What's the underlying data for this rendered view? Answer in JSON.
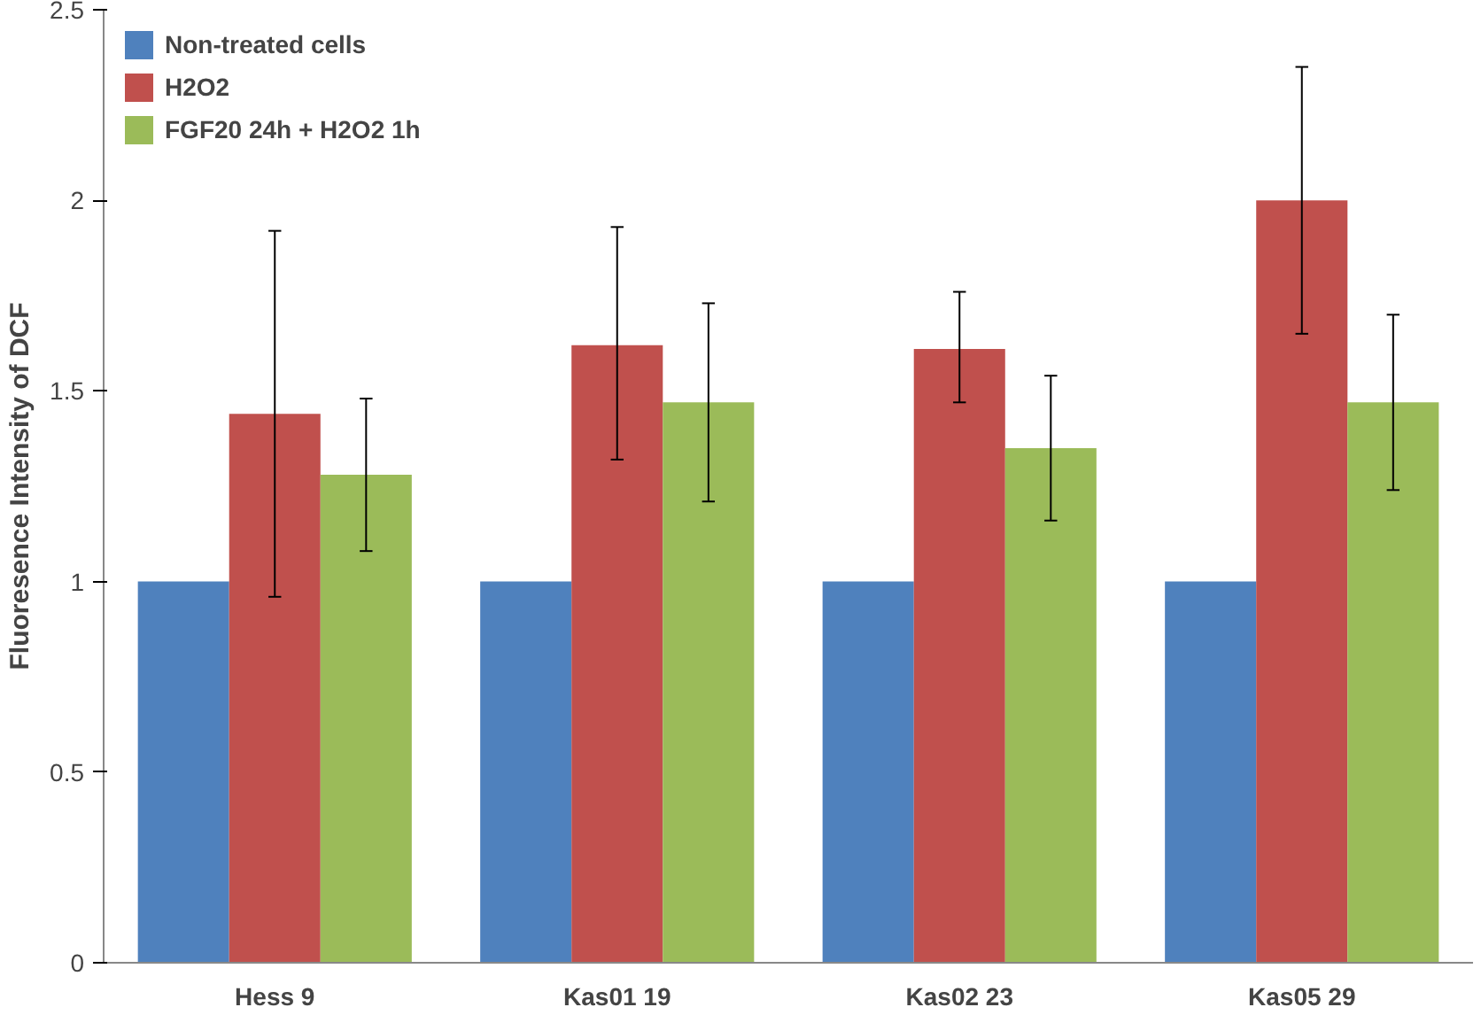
{
  "chart_data": {
    "type": "bar",
    "ylabel": "Fluoresence Intensity of DCF",
    "categories": [
      "Hess 9",
      "Kas01 19",
      "Kas02 23",
      "Kas05 29"
    ],
    "series": [
      {
        "name": "Non-treated cells",
        "color": "#4f81bd",
        "values": [
          1,
          1,
          1,
          1
        ]
      },
      {
        "name": "H2O2",
        "color": "#c0504d",
        "values": [
          1.44,
          1.62,
          1.61,
          2.0
        ],
        "errors": [
          [
            0.96,
            1.92
          ],
          [
            1.32,
            1.93
          ],
          [
            1.47,
            1.76
          ],
          [
            1.65,
            2.35
          ]
        ]
      },
      {
        "name": "FGF20 24h + H2O2 1h",
        "color": "#9bbb59",
        "values": [
          1.28,
          1.47,
          1.35,
          1.47
        ],
        "errors": [
          [
            1.08,
            1.48
          ],
          [
            1.21,
            1.73
          ],
          [
            1.16,
            1.54
          ],
          [
            1.24,
            1.7
          ]
        ]
      }
    ],
    "ylim": [
      0,
      2.5
    ],
    "yticks": [
      0,
      0.5,
      1,
      1.5,
      2,
      2.5
    ],
    "grid": false,
    "legend": "top left"
  }
}
